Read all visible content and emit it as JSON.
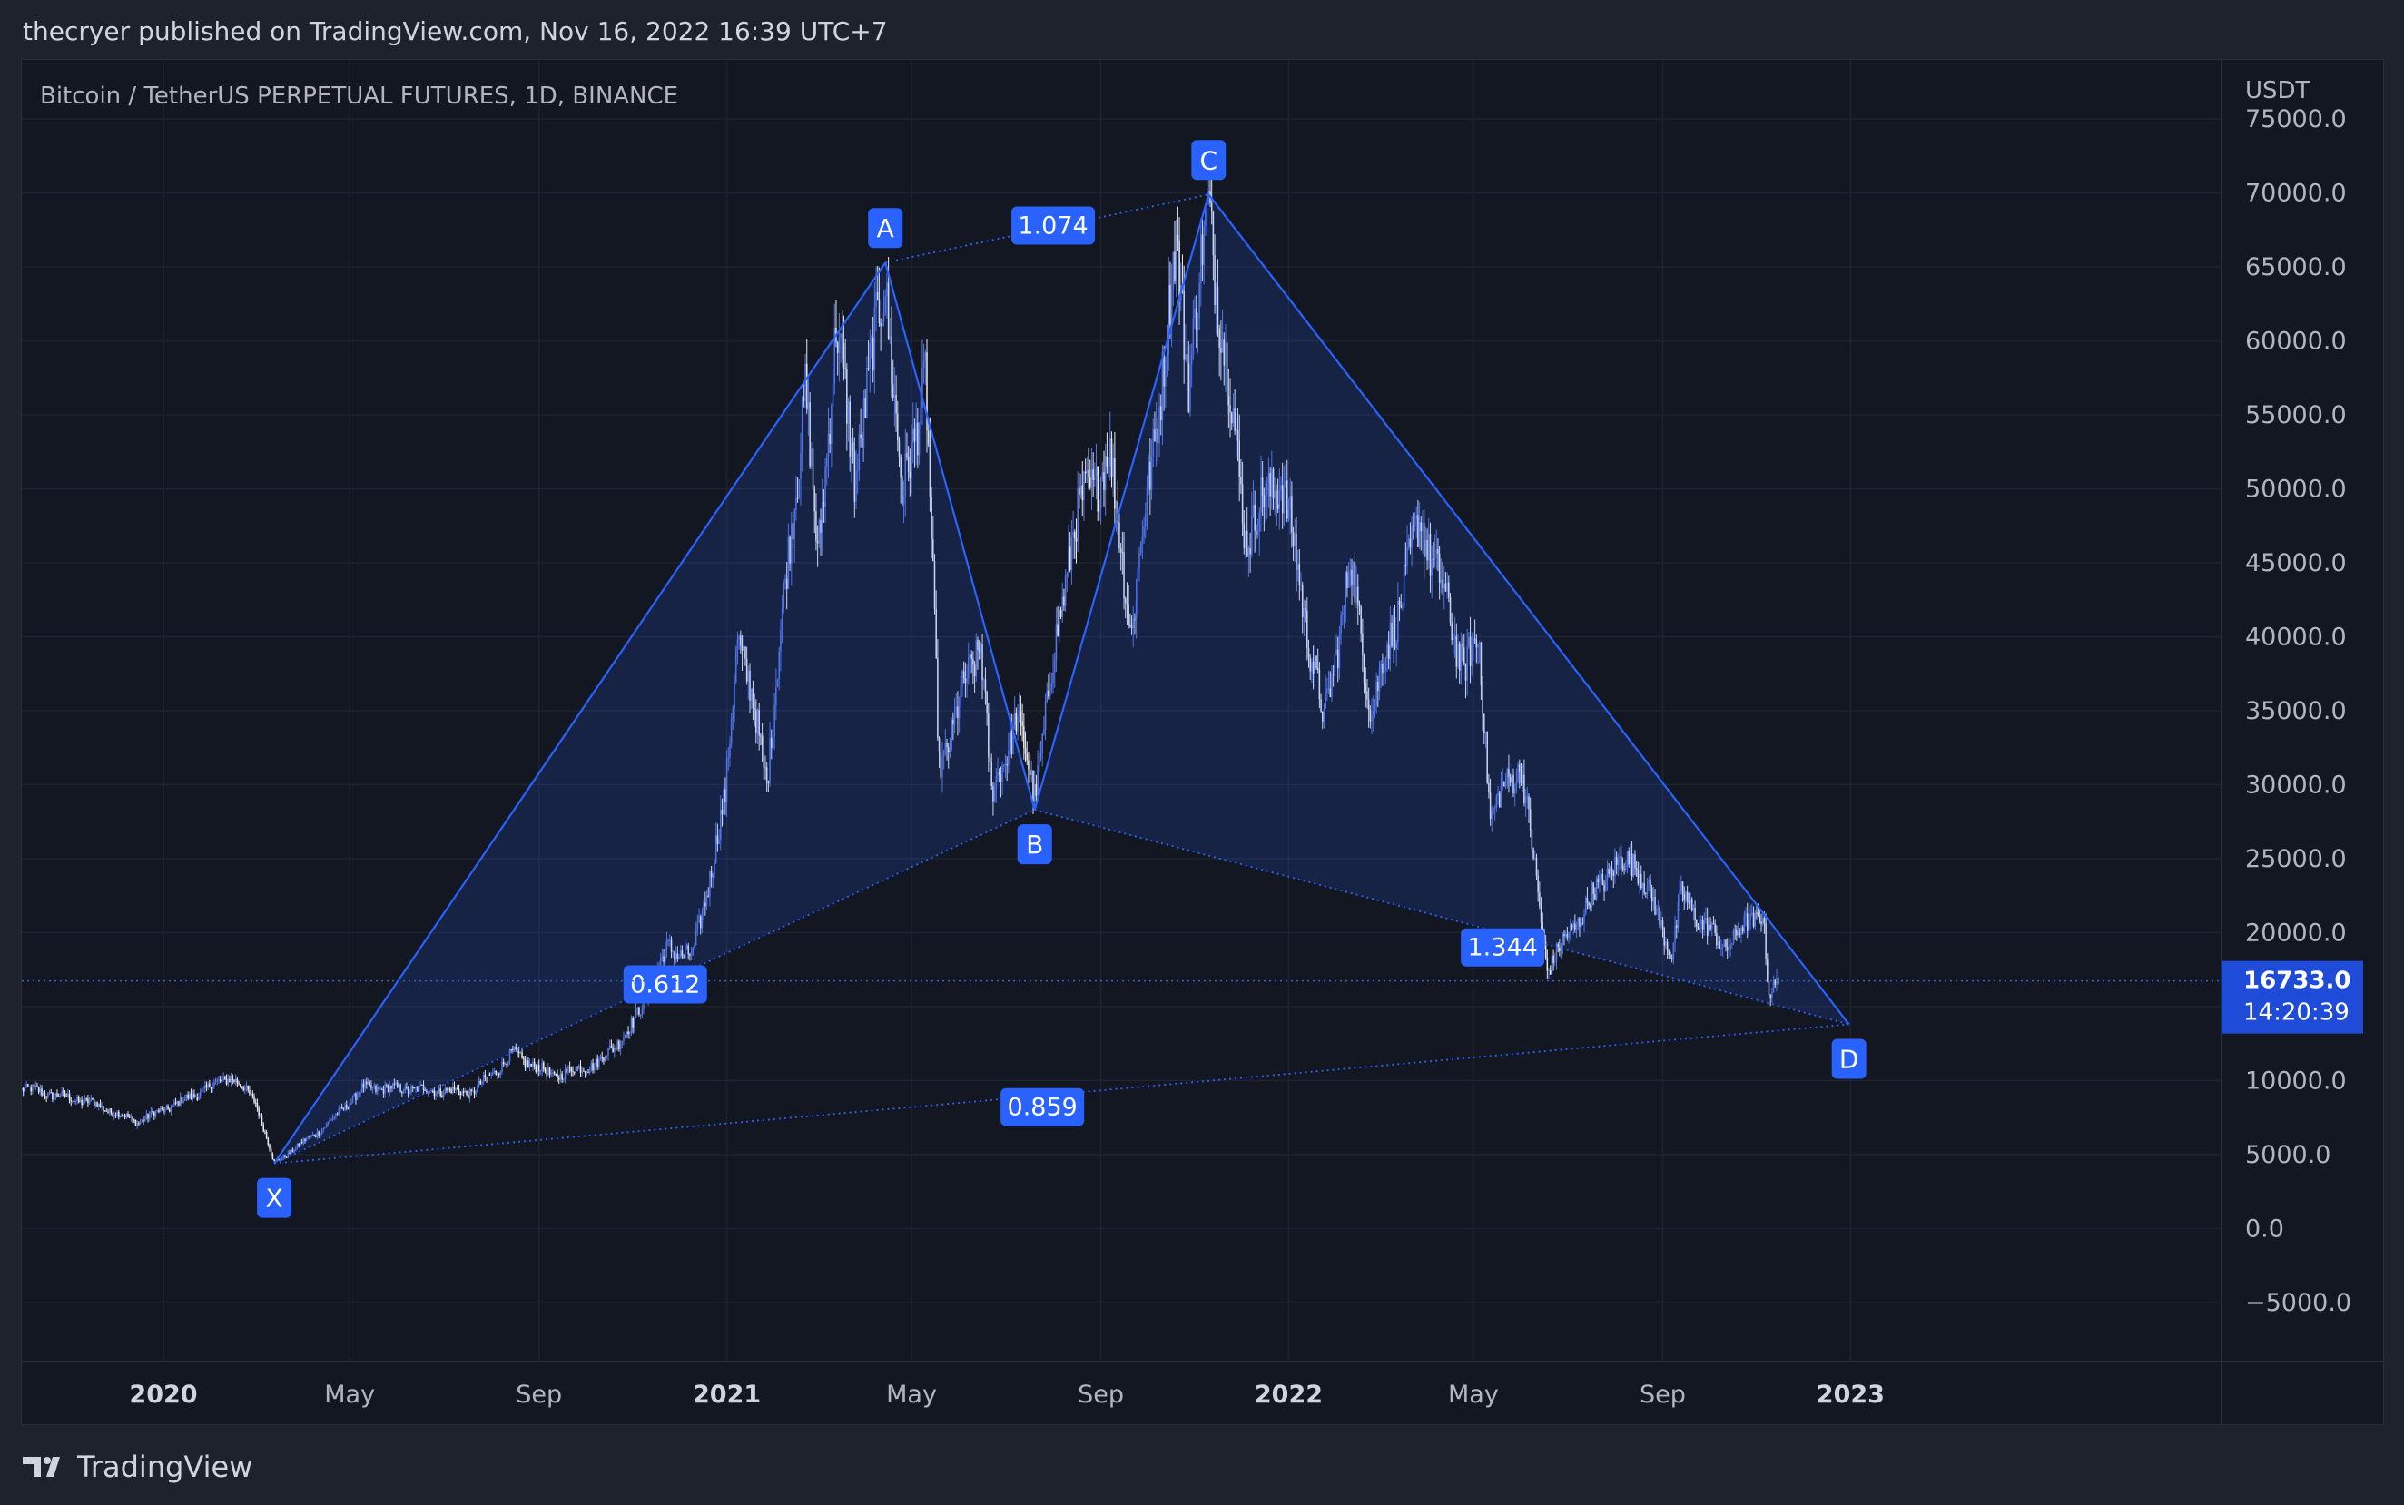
{
  "header": {
    "publisher_line": "thecryer published on TradingView.com, Nov 16, 2022 16:39 UTC+7"
  },
  "footer": {
    "brand": "TradingView"
  },
  "colors": {
    "panel_bg": "#131722",
    "grid": "#1f2330",
    "pattern_line": "#2962ff",
    "pattern_fill": "rgba(41,98,255,0.16)",
    "label_bg": "#2962ff",
    "axis_text": "#b2b5be",
    "candle_up": "#5677e6",
    "candle_down": "#e8eaf0",
    "last_price_bg": "#1e4bd8"
  },
  "chart_data": {
    "type": "candlestick",
    "symbol_title": "Bitcoin / TetherUS PERPETUAL FUTURES, 1D, BINANCE",
    "currency": "USDT",
    "ylim": [
      -9000,
      79000
    ],
    "y_ticks": [
      75000,
      70000,
      65000,
      60000,
      55000,
      50000,
      45000,
      40000,
      35000,
      30000,
      25000,
      20000,
      15000,
      10000,
      5000,
      0,
      -5000
    ],
    "y_tick_labels": [
      "75000.0",
      "70000.0",
      "65000.0",
      "60000.0",
      "55000.0",
      "50000.0",
      "45000.0",
      "40000.0",
      "35000.0",
      "30000.0",
      "25000.0",
      "20000.0",
      null,
      "10000.0",
      "5000.0",
      "0.0",
      "−5000.0"
    ],
    "x_range": [
      "2019-10-01",
      "2023-08-30"
    ],
    "x_ticks": [
      {
        "date": "2020-01-01",
        "label": "2020",
        "bold": true
      },
      {
        "date": "2020-05-01",
        "label": "May",
        "bold": false
      },
      {
        "date": "2020-09-01",
        "label": "Sep",
        "bold": false
      },
      {
        "date": "2021-01-01",
        "label": "2021",
        "bold": true
      },
      {
        "date": "2021-05-01",
        "label": "May",
        "bold": false
      },
      {
        "date": "2021-09-01",
        "label": "Sep",
        "bold": false
      },
      {
        "date": "2022-01-01",
        "label": "2022",
        "bold": true
      },
      {
        "date": "2022-05-01",
        "label": "May",
        "bold": false
      },
      {
        "date": "2022-09-01",
        "label": "Sep",
        "bold": false
      },
      {
        "date": "2023-01-01",
        "label": "2023",
        "bold": true
      }
    ],
    "price_path": [
      [
        "2019-10-01",
        9500
      ],
      [
        "2019-11-15",
        8500
      ],
      [
        "2019-12-15",
        7200
      ],
      [
        "2020-01-15",
        8700
      ],
      [
        "2020-02-14",
        10300
      ],
      [
        "2020-03-01",
        8600
      ],
      [
        "2020-03-13",
        4400
      ],
      [
        "2020-04-15",
        6900
      ],
      [
        "2020-05-10",
        9500
      ],
      [
        "2020-06-15",
        9400
      ],
      [
        "2020-07-20",
        9200
      ],
      [
        "2020-08-15",
        11800
      ],
      [
        "2020-09-10",
        10300
      ],
      [
        "2020-10-10",
        11200
      ],
      [
        "2020-11-01",
        13800
      ],
      [
        "2020-11-24",
        19000
      ],
      [
        "2020-12-10",
        18300
      ],
      [
        "2020-12-31",
        29000
      ],
      [
        "2021-01-08",
        40500
      ],
      [
        "2021-01-27",
        30500
      ],
      [
        "2021-02-21",
        57000
      ],
      [
        "2021-03-01",
        45000
      ],
      [
        "2021-03-13",
        61000
      ],
      [
        "2021-03-25",
        51000
      ],
      [
        "2021-04-14",
        64500
      ],
      [
        "2021-04-25",
        49000
      ],
      [
        "2021-05-10",
        58000
      ],
      [
        "2021-05-19",
        31000
      ],
      [
        "2021-06-15",
        40000
      ],
      [
        "2021-06-22",
        29000
      ],
      [
        "2021-07-08",
        34500
      ],
      [
        "2021-07-20",
        29500
      ],
      [
        "2021-08-14",
        47500
      ],
      [
        "2021-09-06",
        52500
      ],
      [
        "2021-09-21",
        40500
      ],
      [
        "2021-10-20",
        66000
      ],
      [
        "2021-10-28",
        58000
      ],
      [
        "2021-11-10",
        69000
      ],
      [
        "2021-12-04",
        47000
      ],
      [
        "2021-12-27",
        51000
      ],
      [
        "2022-01-24",
        34000
      ],
      [
        "2022-02-10",
        45000
      ],
      [
        "2022-02-24",
        35000
      ],
      [
        "2022-03-28",
        48000
      ],
      [
        "2022-04-25",
        38000
      ],
      [
        "2022-05-05",
        39500
      ],
      [
        "2022-05-12",
        28000
      ],
      [
        "2022-06-01",
        31500
      ],
      [
        "2022-06-18",
        17600
      ],
      [
        "2022-07-30",
        24500
      ],
      [
        "2022-08-15",
        24800
      ],
      [
        "2022-09-07",
        18600
      ],
      [
        "2022-09-13",
        22500
      ],
      [
        "2022-10-10",
        19000
      ],
      [
        "2022-11-05",
        21500
      ],
      [
        "2022-11-09",
        15600
      ],
      [
        "2022-11-16",
        16733
      ]
    ],
    "last_price": {
      "value": 16733,
      "label": "16733.0",
      "countdown": "14:20:39"
    },
    "pattern": {
      "points": [
        {
          "name": "X",
          "date": "2020-03-13",
          "price": 4400,
          "label_position": "below"
        },
        {
          "name": "A",
          "date": "2021-04-14",
          "price": 65300,
          "label_position": "above"
        },
        {
          "name": "B",
          "date": "2021-07-20",
          "price": 28300,
          "label_position": "below"
        },
        {
          "name": "C",
          "date": "2021-11-10",
          "price": 69900,
          "label_position": "above"
        },
        {
          "name": "D",
          "date": "2022-12-31",
          "price": 13800,
          "label_position": "below"
        }
      ],
      "ratios": [
        {
          "label": "1.074",
          "from": "A",
          "to": "C",
          "date": "2021-08-01",
          "price": 67800
        },
        {
          "label": "0.612",
          "from": "X",
          "to": "B",
          "date": "2020-11-22",
          "price": 16500
        },
        {
          "label": "1.344",
          "from": "B",
          "to": "D",
          "date": "2022-05-20",
          "price": 19000
        },
        {
          "label": "0.859",
          "from": "X",
          "to": "D",
          "date": "2021-07-25",
          "price": 8200
        }
      ]
    }
  }
}
